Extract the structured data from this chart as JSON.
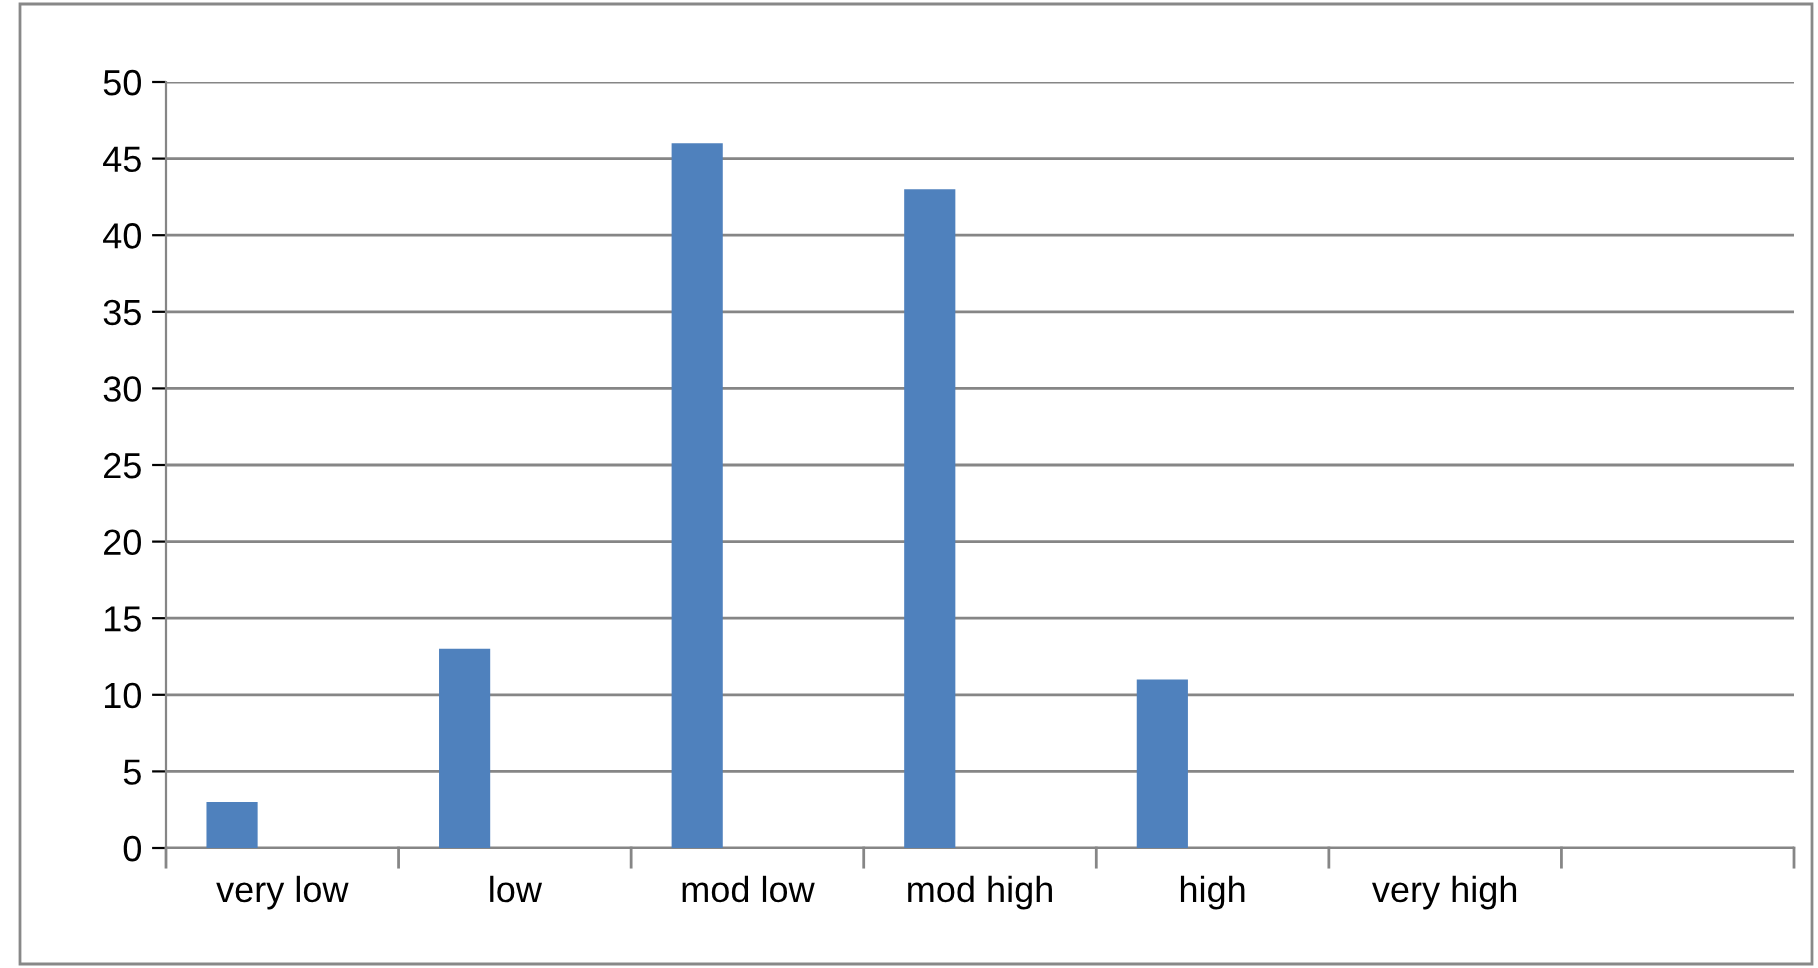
{
  "chart_data": {
    "type": "bar",
    "categories": [
      "very low",
      "low",
      "mod low",
      "mod high",
      "high",
      "very high",
      null
    ],
    "values": [
      3,
      13,
      46,
      43,
      11,
      0,
      null
    ],
    "color": "#4f81bd",
    "ylim": [
      0,
      50
    ],
    "yticks": [
      0,
      5,
      10,
      15,
      20,
      25,
      30,
      35,
      40,
      45,
      50
    ],
    "grid": "y",
    "legend": false
  }
}
